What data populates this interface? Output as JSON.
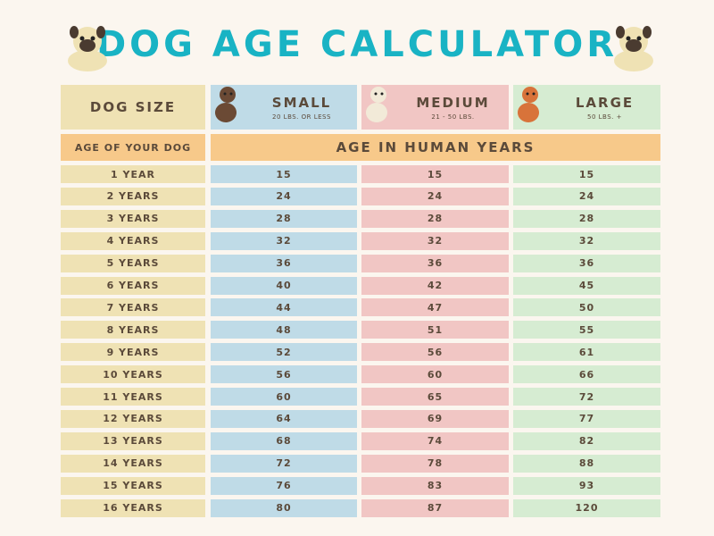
{
  "title": "DOG AGE CALCULATOR",
  "header": {
    "size_label": "DOG SIZE",
    "sizes": [
      {
        "name": "SMALL",
        "weight": "20 LBS. OR LESS"
      },
      {
        "name": "MEDIUM",
        "weight": "21 - 50 LBS."
      },
      {
        "name": "LARGE",
        "weight": "50 LBS. +"
      }
    ],
    "age_label": "AGE OF YOUR DOG",
    "human_label": "AGE IN HUMAN YEARS"
  },
  "table": {
    "rows": [
      [
        "1 YEAR",
        15,
        15,
        15
      ],
      [
        "2 YEARS",
        24,
        24,
        24
      ],
      [
        "3 YEARS",
        28,
        28,
        28
      ],
      [
        "4 YEARS",
        32,
        32,
        32
      ],
      [
        "5 YEARS",
        36,
        36,
        36
      ],
      [
        "6 YEARS",
        40,
        42,
        45
      ],
      [
        "7 YEARS",
        44,
        47,
        50
      ],
      [
        "8 YEARS",
        48,
        51,
        55
      ],
      [
        "9 YEARS",
        52,
        56,
        61
      ],
      [
        "10 YEARS",
        56,
        60,
        66
      ],
      [
        "11 YEARS",
        60,
        65,
        72
      ],
      [
        "12 YEARS",
        64,
        69,
        77
      ],
      [
        "13 YEARS",
        68,
        74,
        82
      ],
      [
        "14 YEARS",
        72,
        78,
        88
      ],
      [
        "15 YEARS",
        76,
        83,
        93
      ],
      [
        "16 YEARS",
        80,
        87,
        120
      ]
    ]
  }
}
